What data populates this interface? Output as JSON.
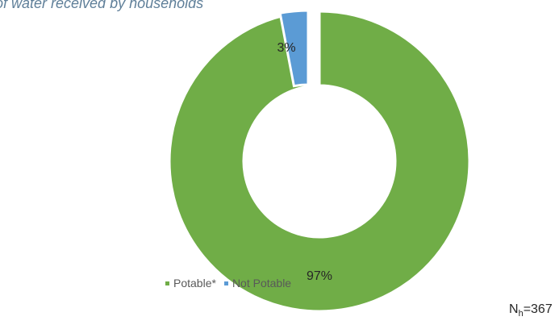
{
  "chart_data": {
    "type": "pie",
    "title": "of water received by households",
    "categories": [
      "Potable*",
      "Not Potable"
    ],
    "values": [
      97,
      3
    ],
    "data_labels": [
      "97%",
      "3%"
    ],
    "colors": [
      "#70ad47",
      "#5b9bd5"
    ],
    "legend_placement": "bottom-left",
    "donut": true,
    "annotation": {
      "prefix": "N",
      "subscript": "h",
      "suffix": "=367"
    }
  }
}
